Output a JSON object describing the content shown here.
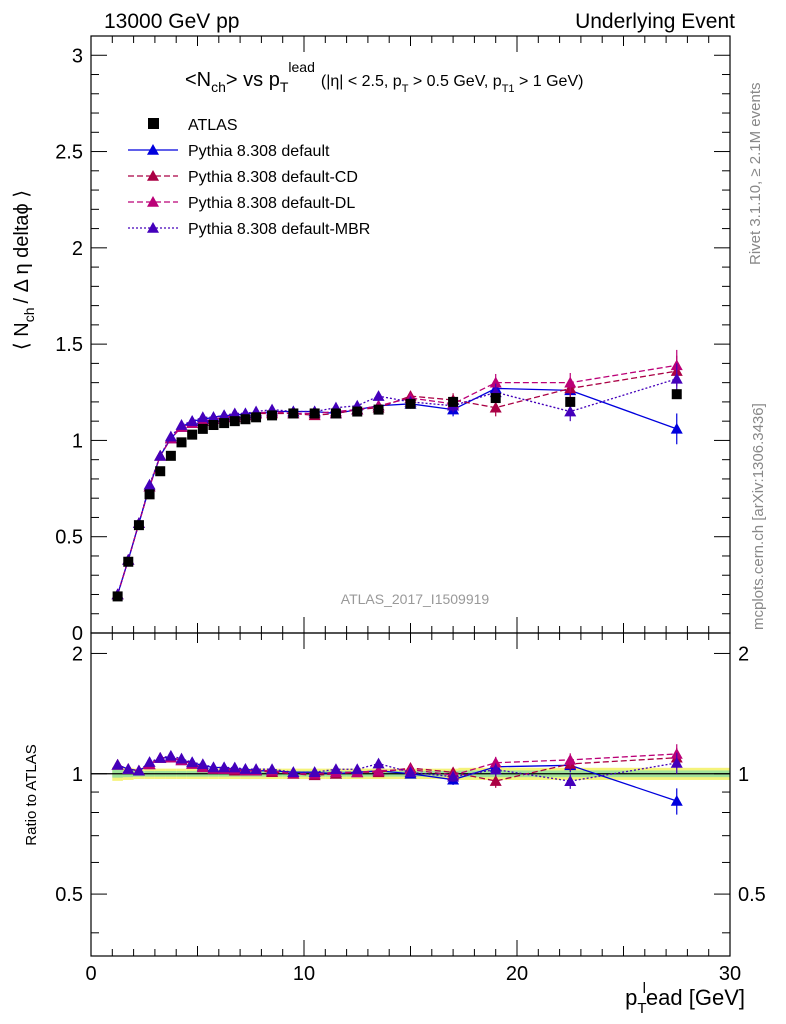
{
  "header": {
    "left": "13000 GeV pp",
    "right": "Underlying Event"
  },
  "title": {
    "main": "<N",
    "main_sub": "ch",
    "main_mid": "> vs p",
    "main_sub2": "T",
    "main_sup": "lead",
    "cuts_1": "(|η| < 2.5, p",
    "cuts_sub1": "T",
    "cuts_2": " > 0.5 GeV, p",
    "cuts_sub2": "T1",
    "cuts_3": " > 1 GeV)"
  },
  "side_text": {
    "rivet": "Rivet 3.1.10, ≥ 2.1M events",
    "mcplots": "mcplots.cern.ch [arXiv:1306.3436]"
  },
  "analysis_label": "ATLAS_2017_I1509919",
  "ylabel_main": {
    "a": "⟨ N",
    "sub": "ch",
    "b": "/ Δ η deltaϕ ⟩"
  },
  "ylabel_ratio": "Ratio to ATLAS",
  "xlabel": {
    "a": "p",
    "sub": "T",
    "sup": "l",
    "b": "ead [GeV]"
  },
  "legend": [
    {
      "label": "ATLAS",
      "marker": "square",
      "color": "#000000",
      "dash": ""
    },
    {
      "label": "Pythia 8.308 default",
      "marker": "triangle",
      "color": "#0000dd",
      "dash": ""
    },
    {
      "label": "Pythia 8.308 default-CD",
      "marker": "triangle",
      "color": "#aa0044",
      "dash": "6,3"
    },
    {
      "label": "Pythia 8.308 default-DL",
      "marker": "triangle",
      "color": "#bb0077",
      "dash": "6,3"
    },
    {
      "label": "Pythia 8.308 default-MBR",
      "marker": "triangle",
      "color": "#4400bb",
      "dash": "2,2"
    }
  ],
  "chart_data": {
    "type": "scatter",
    "x": [
      1.25,
      1.75,
      2.25,
      2.75,
      3.25,
      3.75,
      4.25,
      4.75,
      5.25,
      5.75,
      6.25,
      6.75,
      7.25,
      7.75,
      8.5,
      9.5,
      10.5,
      11.5,
      12.5,
      13.5,
      15.0,
      17.0,
      19.0,
      22.5,
      27.5
    ],
    "series": [
      {
        "name": "ATLAS",
        "values": [
          0.19,
          0.37,
          0.56,
          0.72,
          0.84,
          0.92,
          0.99,
          1.03,
          1.06,
          1.08,
          1.09,
          1.1,
          1.11,
          1.12,
          1.13,
          1.14,
          1.14,
          1.14,
          1.15,
          1.16,
          1.19,
          1.2,
          1.22,
          1.2,
          1.24
        ]
      },
      {
        "name": "Pythia 8.308 default",
        "values": [
          0.2,
          0.38,
          0.57,
          0.76,
          0.92,
          1.01,
          1.07,
          1.1,
          1.11,
          1.12,
          1.13,
          1.13,
          1.14,
          1.14,
          1.15,
          1.15,
          1.15,
          1.14,
          1.16,
          1.18,
          1.19,
          1.16,
          1.27,
          1.26,
          1.06
        ]
      },
      {
        "name": "Pythia 8.308 default-CD",
        "values": [
          0.2,
          0.38,
          0.57,
          0.76,
          0.92,
          1.01,
          1.07,
          1.09,
          1.1,
          1.11,
          1.12,
          1.12,
          1.13,
          1.14,
          1.14,
          1.14,
          1.13,
          1.14,
          1.16,
          1.17,
          1.23,
          1.21,
          1.17,
          1.27,
          1.36
        ]
      },
      {
        "name": "Pythia 8.308 default-DL",
        "values": [
          0.2,
          0.38,
          0.57,
          0.76,
          0.92,
          1.01,
          1.07,
          1.09,
          1.1,
          1.11,
          1.12,
          1.13,
          1.13,
          1.14,
          1.15,
          1.14,
          1.14,
          1.15,
          1.16,
          1.18,
          1.22,
          1.19,
          1.3,
          1.3,
          1.39
        ]
      },
      {
        "name": "Pythia 8.308 default-MBR",
        "values": [
          0.2,
          0.38,
          0.57,
          0.77,
          0.92,
          1.02,
          1.08,
          1.1,
          1.12,
          1.12,
          1.13,
          1.14,
          1.14,
          1.15,
          1.16,
          1.15,
          1.15,
          1.17,
          1.18,
          1.23,
          1.2,
          1.18,
          1.25,
          1.15,
          1.32
        ]
      }
    ],
    "errors_mc": [
      0.005,
      0.005,
      0.005,
      0.005,
      0.005,
      0.005,
      0.005,
      0.005,
      0.005,
      0.005,
      0.005,
      0.005,
      0.005,
      0.006,
      0.007,
      0.008,
      0.01,
      0.012,
      0.015,
      0.018,
      0.025,
      0.035,
      0.045,
      0.05,
      0.08
    ],
    "ratio_band": [
      0.04,
      0.035,
      0.03,
      0.03,
      0.03,
      0.03,
      0.03,
      0.03,
      0.03,
      0.03,
      0.03,
      0.03,
      0.03,
      0.03,
      0.03,
      0.03,
      0.03,
      0.03,
      0.03,
      0.03,
      0.03,
      0.03,
      0.035,
      0.035,
      0.035
    ],
    "xlim": [
      0,
      30
    ],
    "ylim": [
      0,
      3.1
    ],
    "ratio_ylim": [
      0.35,
      2.25
    ],
    "x_ticks": [
      0,
      10,
      20,
      30
    ],
    "y_ticks": [
      0,
      0.5,
      1,
      1.5,
      2,
      2.5,
      3
    ],
    "y_tick_labels": [
      "0",
      "0.5",
      "1",
      "1.5",
      "2",
      "2.5",
      "3"
    ],
    "ratio_ticks": [
      0.5,
      1,
      2
    ],
    "ratio_tick_labels": [
      "0.5",
      "1",
      "2"
    ],
    "legend_position": "top-left"
  }
}
